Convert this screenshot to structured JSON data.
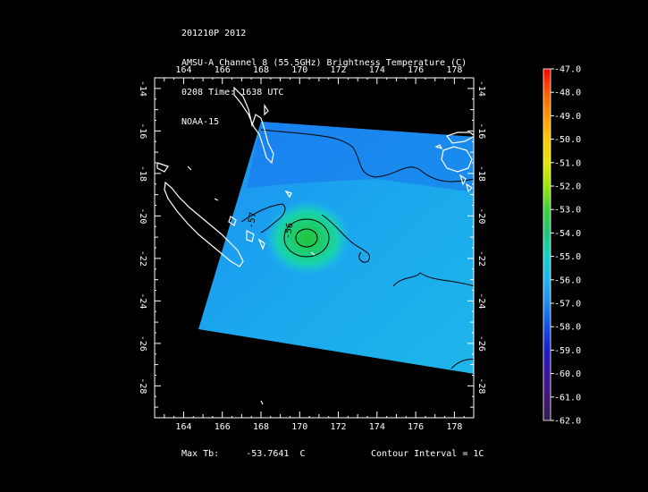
{
  "header": {
    "line1": "201210P 2012",
    "line2": "AMSU-A Channel 8 (55.5GHz) Brightness Temperature (C)",
    "line3": "0208 Time: 1638 UTC",
    "line4": "NOAA-15"
  },
  "map": {
    "lon_ticks": [
      164,
      166,
      168,
      170,
      172,
      174,
      176,
      178
    ],
    "lat_ticks": [
      -14,
      -16,
      -18,
      -20,
      -22,
      -24,
      -26,
      -28
    ],
    "lon_range": [
      162.5,
      179
    ],
    "lat_range": [
      -29.5,
      -13.5
    ],
    "contour_labels": [
      {
        "text": "-57",
        "lon": 167.6,
        "lat": -20.6
      },
      {
        "text": "-56",
        "lon": 169.5,
        "lat": -21.1
      }
    ],
    "colors": {
      "background": "#000000",
      "frame": "#ffffff",
      "coast": "#ffffff",
      "contour": "#000000"
    }
  },
  "colorbar": {
    "labels": [
      "-47.0",
      "-48.0",
      "-49.0",
      "-50.0",
      "-51.0",
      "-52.0",
      "-53.0",
      "-54.0",
      "-55.0",
      "-56.0",
      "-57.0",
      "-58.0",
      "-59.0",
      "-60.0",
      "-61.0",
      "-62.0"
    ],
    "stops": [
      "#ff0000",
      "#ff5a00",
      "#ff9600",
      "#ffc800",
      "#e6e600",
      "#9be600",
      "#3cd23c",
      "#1ec878",
      "#14d2c8",
      "#1eb4f0",
      "#1e8cf0",
      "#1450e6",
      "#1e1ec8",
      "#3c14a0",
      "#461478",
      "#321e50"
    ]
  },
  "footer": {
    "max_label": "Max Tb:",
    "max_value": "-53.7641",
    "max_unit": "C",
    "contour_text": "Contour Interval = 1C"
  }
}
